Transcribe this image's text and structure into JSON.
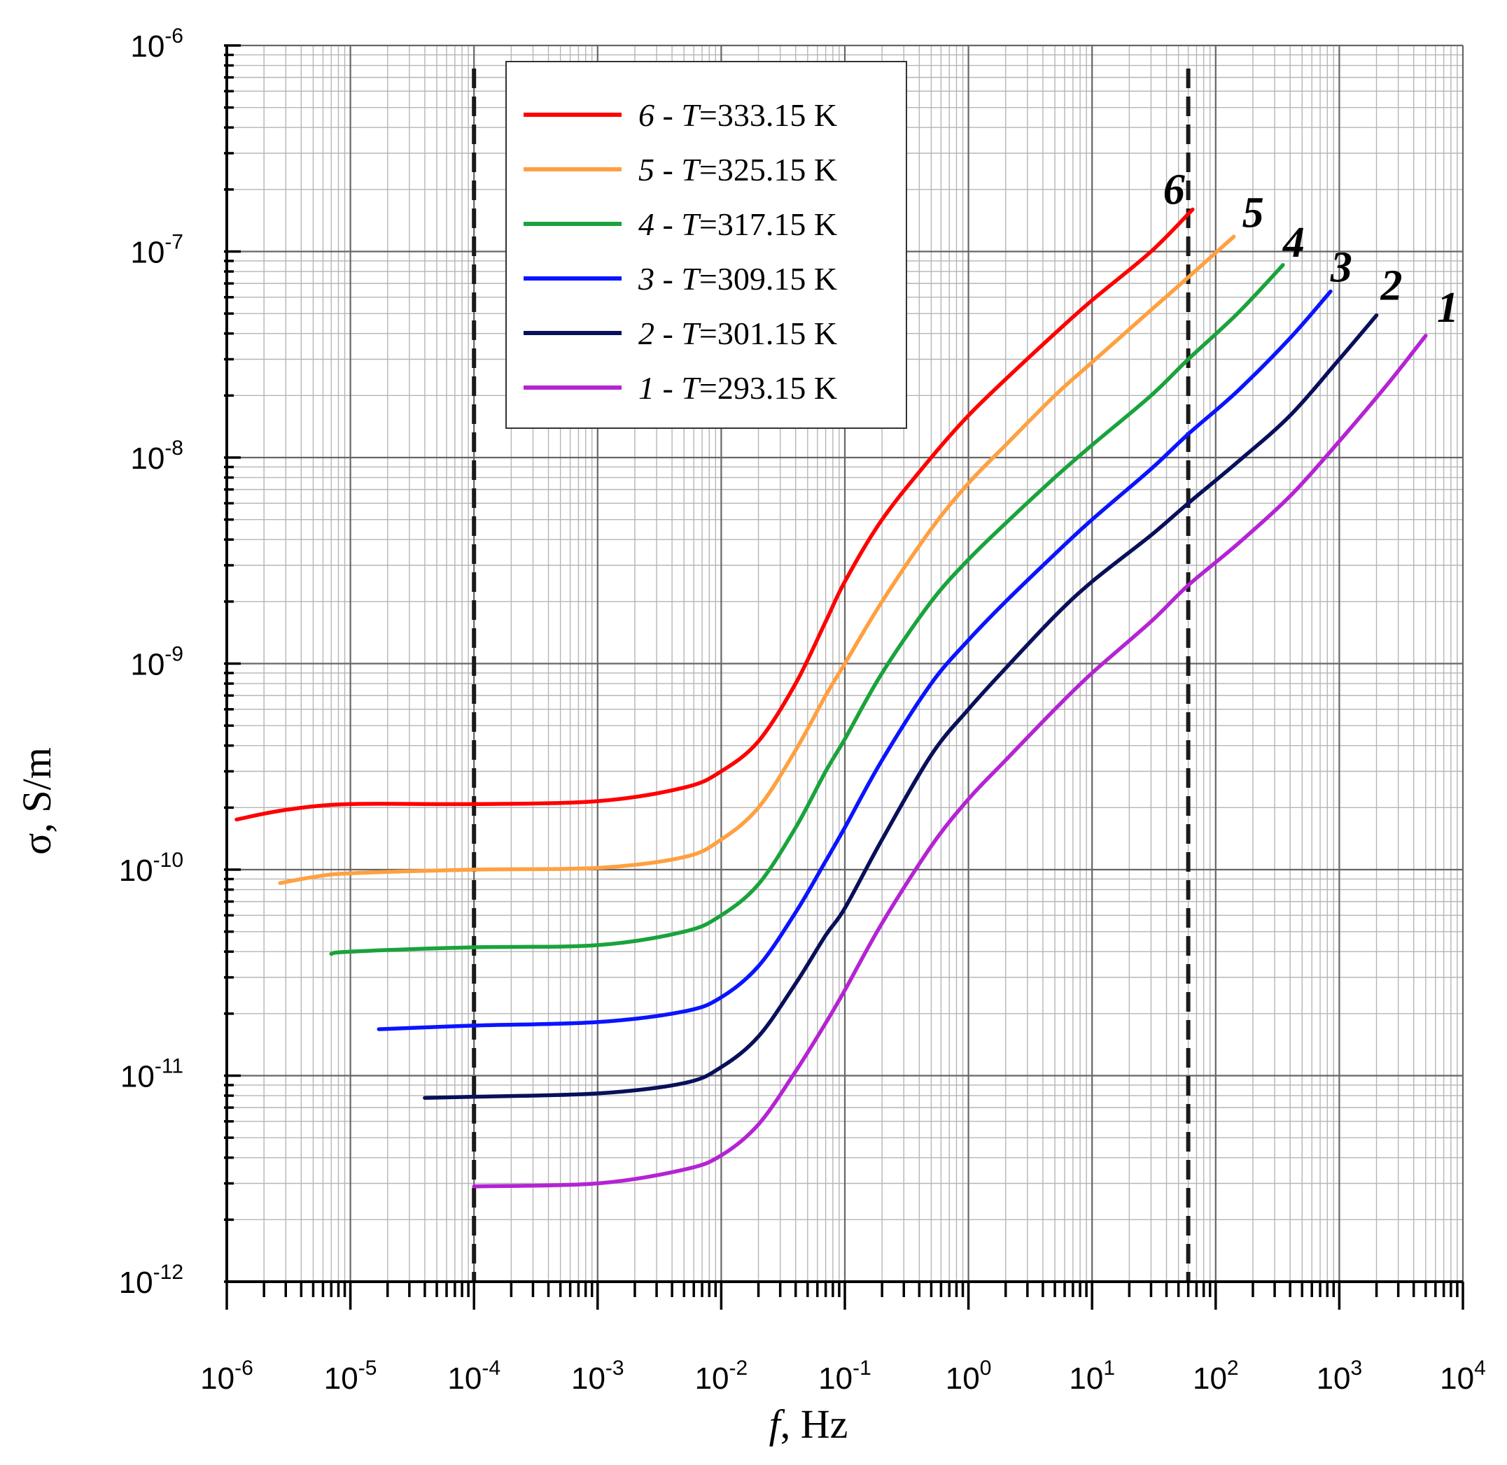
{
  "chart_data": {
    "type": "line",
    "x_scale": "log",
    "y_scale": "log",
    "xlim": [
      1e-06,
      10000
    ],
    "ylim": [
      1e-12,
      1e-06
    ],
    "grid": true,
    "legend_placement": "top-center",
    "xlabel": {
      "italic": "f",
      "rest": ", Hz"
    },
    "ylabel": "σ, S/m",
    "x_ticks": [
      {
        "mant": "10",
        "exp": "-6"
      },
      {
        "mant": "10",
        "exp": "-5"
      },
      {
        "mant": "10",
        "exp": "-4"
      },
      {
        "mant": "10",
        "exp": "-3"
      },
      {
        "mant": "10",
        "exp": "-2"
      },
      {
        "mant": "10",
        "exp": "-1"
      },
      {
        "mant": "10",
        "exp": "0"
      },
      {
        "mant": "10",
        "exp": "1"
      },
      {
        "mant": "10",
        "exp": "2"
      },
      {
        "mant": "10",
        "exp": "3"
      },
      {
        "mant": "10",
        "exp": "4"
      }
    ],
    "y_ticks": [
      {
        "mant": "10",
        "exp": "-12"
      },
      {
        "mant": "10",
        "exp": "-11"
      },
      {
        "mant": "10",
        "exp": "-10"
      },
      {
        "mant": "10",
        "exp": "-9"
      },
      {
        "mant": "10",
        "exp": "-8"
      },
      {
        "mant": "10",
        "exp": "-7"
      },
      {
        "mant": "10",
        "exp": "-6"
      }
    ],
    "vertical_markers_x": [
      0.0001,
      60
    ],
    "series": [
      {
        "num": "6",
        "t_sym": "T",
        "t_rest": "=333.15 K",
        "sep": " - ",
        "color": "#ff0000",
        "end_label": "6",
        "x": [
          1.2e-06,
          3e-06,
          1e-05,
          0.0001,
          0.001,
          0.005,
          0.01,
          0.02,
          0.04,
          0.07,
          0.1,
          0.2,
          0.5,
          1,
          2,
          5,
          10,
          30,
          65
        ],
        "y": [
          1.75e-10,
          1.95e-10,
          2.08e-10,
          2.08e-10,
          2.15e-10,
          2.5e-10,
          3e-10,
          4.2e-10,
          8e-10,
          1.6e-09,
          2.5e-09,
          5e-09,
          1e-08,
          1.6e-08,
          2.4e-08,
          4e-08,
          5.8e-08,
          1e-07,
          1.6e-07
        ]
      },
      {
        "num": "5",
        "t_sym": "T",
        "t_rest": "=325.15 K",
        "sep": " - ",
        "color": "#ffa040",
        "end_label": "5",
        "x": [
          2.7e-06,
          5e-06,
          1e-05,
          0.0001,
          0.001,
          0.005,
          0.01,
          0.02,
          0.04,
          0.07,
          0.1,
          0.2,
          0.5,
          1,
          2,
          5,
          10,
          30,
          60,
          140
        ],
        "y": [
          8.6e-11,
          9.2e-11,
          9.6e-11,
          1e-10,
          1.02e-10,
          1.15e-10,
          1.4e-10,
          2e-10,
          3.8e-10,
          7e-10,
          1e-09,
          2e-09,
          4.5e-09,
          7.5e-09,
          1.15e-08,
          2e-08,
          2.9e-08,
          5.2e-08,
          7.5e-08,
          1.18e-07
        ]
      },
      {
        "num": "4",
        "t_sym": "T",
        "t_rest": "=317.15 K",
        "sep": " - ",
        "color": "#1aa33c",
        "end_label": "4",
        "x": [
          7e-06,
          1e-05,
          0.0001,
          0.001,
          0.005,
          0.01,
          0.02,
          0.04,
          0.07,
          0.1,
          0.2,
          0.5,
          1,
          2,
          5,
          10,
          30,
          60,
          150,
          350
        ],
        "y": [
          3.9e-11,
          4e-11,
          4.2e-11,
          4.3e-11,
          5e-11,
          6e-11,
          8.5e-11,
          1.6e-10,
          3e-10,
          4.3e-10,
          9e-10,
          2e-09,
          3.2e-09,
          4.8e-09,
          8e-09,
          1.15e-08,
          2e-08,
          3e-08,
          5e-08,
          8.6e-08
        ]
      },
      {
        "num": "3",
        "t_sym": "T",
        "t_rest": "=309.15 K",
        "sep": " - ",
        "color": "#0a14ff",
        "end_label": "3",
        "x": [
          1.7e-05,
          0.0001,
          0.001,
          0.005,
          0.01,
          0.02,
          0.04,
          0.07,
          0.1,
          0.2,
          0.5,
          1,
          2,
          5,
          10,
          30,
          60,
          150,
          400,
          850
        ],
        "y": [
          1.68e-11,
          1.75e-11,
          1.82e-11,
          2.05e-11,
          2.4e-11,
          3.4e-11,
          6.2e-11,
          1.1e-10,
          1.6e-10,
          3.4e-10,
          8e-10,
          1.3e-09,
          2e-09,
          3.4e-09,
          5e-09,
          8.8e-09,
          1.3e-08,
          2.1e-08,
          3.8e-08,
          6.4e-08
        ]
      },
      {
        "num": "2",
        "t_sym": "T",
        "t_rest": "=301.15 K",
        "sep": " - ",
        "color": "#08105a",
        "end_label": "2",
        "x": [
          4e-05,
          0.0001,
          0.001,
          0.005,
          0.01,
          0.02,
          0.04,
          0.07,
          0.1,
          0.2,
          0.5,
          1,
          2,
          5,
          10,
          30,
          60,
          150,
          400,
          1000,
          2000
        ],
        "y": [
          7.8e-12,
          7.9e-12,
          8.2e-12,
          9.2e-12,
          1.1e-11,
          1.55e-11,
          2.8e-11,
          4.8e-11,
          6.5e-11,
          1.4e-10,
          3.6e-10,
          6e-10,
          9.5e-10,
          1.7e-09,
          2.5e-09,
          4.2e-09,
          6e-09,
          9.5e-09,
          1.6e-08,
          3e-08,
          4.9e-08
        ]
      },
      {
        "num": "1",
        "t_sym": "T",
        "t_rest": "=293.15 K",
        "sep": " - ",
        "color": "#b424d2",
        "end_label": "1",
        "x": [
          0.0001,
          0.001,
          0.005,
          0.01,
          0.02,
          0.04,
          0.07,
          0.1,
          0.2,
          0.5,
          1,
          2,
          5,
          10,
          30,
          60,
          150,
          400,
          1000,
          2500,
          5000
        ],
        "y": [
          2.9e-12,
          3e-12,
          3.5e-12,
          4.1e-12,
          5.8e-12,
          1.05e-11,
          1.8e-11,
          2.6e-11,
          5.5e-11,
          1.3e-10,
          2.2e-10,
          3.4e-10,
          6e-10,
          9e-10,
          1.6e-09,
          2.4e-09,
          3.8e-09,
          6.5e-09,
          1.2e-08,
          2.3e-08,
          3.9e-08
        ]
      }
    ]
  }
}
